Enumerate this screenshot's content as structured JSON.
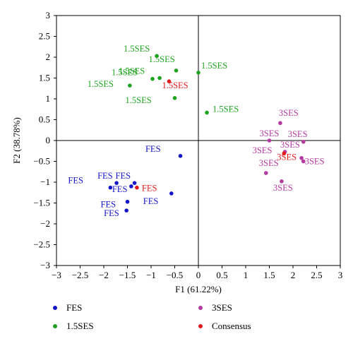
{
  "chart_data": {
    "type": "scatter",
    "xlabel": "F1 (61.22%)",
    "ylabel": "F2 (38.78%)",
    "xlim": [
      -3,
      3
    ],
    "ylim": [
      -3,
      3
    ],
    "xticks": [
      "−3",
      "−2.5",
      "−2",
      "−1.5",
      "−1",
      "−0.5",
      "0",
      "0.5",
      "1",
      "1.5",
      "2",
      "2.5",
      "3"
    ],
    "yticks": [
      "3",
      "2.5",
      "2",
      "1.5",
      "1",
      "0.5",
      "0",
      "−0.5",
      "−1",
      "−1.5",
      "−2",
      "−2.5",
      "−3"
    ],
    "grid": false,
    "legend_placement": "bottom",
    "series": [
      {
        "name": "FES",
        "color": "#1515c8",
        "points": [
          {
            "x": -0.38,
            "y": -0.37,
            "label": "FES"
          },
          {
            "x": -1.73,
            "y": -1.02,
            "label": "FES"
          },
          {
            "x": -1.35,
            "y": -1.02,
            "label": "FES"
          },
          {
            "x": -1.86,
            "y": -1.13,
            "label": "FES"
          },
          {
            "x": -1.42,
            "y": -1.1,
            "label": "FES"
          },
          {
            "x": -0.57,
            "y": -1.27,
            "label": "FES"
          },
          {
            "x": -1.5,
            "y": -1.47,
            "label": "FES"
          },
          {
            "x": -1.52,
            "y": -1.68,
            "label": "FES"
          }
        ]
      },
      {
        "name": "1.5SES",
        "color": "#1fa31f",
        "points": [
          {
            "x": -0.97,
            "y": 1.48,
            "label": "1.5SES"
          },
          {
            "x": -0.88,
            "y": 2.03,
            "label": "1.5SES"
          },
          {
            "x": -0.47,
            "y": 1.68,
            "label": "1.5SES"
          },
          {
            "x": -0.82,
            "y": 1.5,
            "label": "1.5SES"
          },
          {
            "x": -1.45,
            "y": 1.32,
            "label": "1.5SES"
          },
          {
            "x": -0.5,
            "y": 1.02,
            "label": "1.5SES"
          },
          {
            "x": 0.0,
            "y": 1.63,
            "label": "1.5SES"
          },
          {
            "x": 0.18,
            "y": 0.67,
            "label": "1.5SES"
          }
        ]
      },
      {
        "name": "3SES",
        "color": "#b43aa0",
        "points": [
          {
            "x": 1.73,
            "y": 0.42,
            "label": "3SES"
          },
          {
            "x": 2.22,
            "y": -0.03,
            "label": "3SES"
          },
          {
            "x": 1.5,
            "y": 0.0,
            "label": "3SES"
          },
          {
            "x": 1.83,
            "y": -0.27,
            "label": "3SES"
          },
          {
            "x": 2.18,
            "y": -0.42,
            "label": "3SES"
          },
          {
            "x": 2.22,
            "y": -0.5,
            "label": "3SES"
          },
          {
            "x": 1.43,
            "y": -0.78,
            "label": "3SES"
          },
          {
            "x": 1.76,
            "y": -0.98,
            "label": "3SES"
          }
        ]
      },
      {
        "name": "Consensus",
        "color": "#e11c1c",
        "points": [
          {
            "x": -0.62,
            "y": 1.42,
            "label": "1.5SES"
          },
          {
            "x": 1.81,
            "y": -0.31,
            "label": "3SES"
          },
          {
            "x": -1.3,
            "y": -1.13,
            "label": "FES"
          }
        ]
      }
    ]
  }
}
